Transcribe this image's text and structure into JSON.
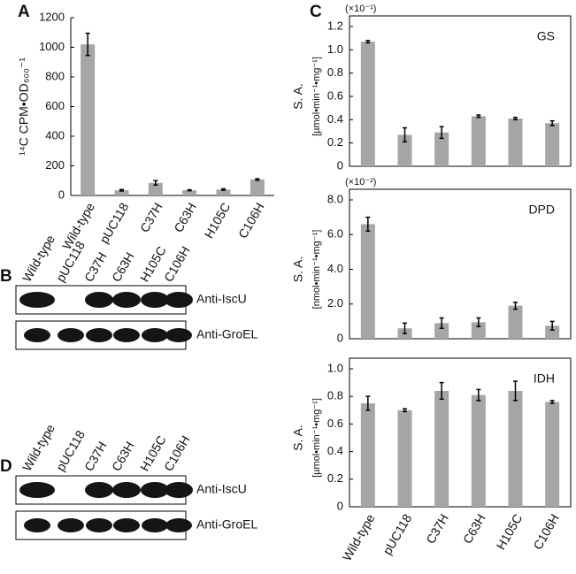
{
  "chart_data": [
    {
      "type": "bar",
      "panel_label": "A",
      "y_label": "¹⁴C CPM•OD₆₀₀⁻¹",
      "categories": [
        "Wild-type",
        "pUC118",
        "C37H",
        "C63H",
        "H105C",
        "C106H"
      ],
      "values": [
        1020,
        35,
        85,
        35,
        40,
        108
      ],
      "errors": [
        75,
        5,
        15,
        3,
        5,
        5
      ],
      "color": "#a6a6a6",
      "ylim": [
        0,
        1200
      ],
      "yticks": [
        0,
        200,
        400,
        600,
        800,
        1000,
        1200
      ],
      "grid": false
    },
    {
      "type": "bar",
      "panel_label": "C",
      "annotation": "GS",
      "scale_note": "(×10⁻¹)",
      "y_label": "S. A.",
      "y_unit": "[µmol•min⁻¹•mg⁻¹]",
      "values": [
        1.07,
        0.27,
        0.29,
        0.43,
        0.41,
        0.37
      ],
      "errors": [
        0.01,
        0.06,
        0.05,
        0.01,
        0.01,
        0.02
      ],
      "color": "#a6a6a6",
      "ylim": [
        0,
        1.2
      ],
      "yticks": [
        0,
        0.2,
        0.4,
        0.6,
        0.8,
        {
          "value": 1,
          "label": "1.0"
        },
        1.2
      ],
      "grid": false
    },
    {
      "type": "bar",
      "annotation": "DPD",
      "scale_note": "(×10⁻²)",
      "y_label": "S. A.",
      "y_unit": "[nmol•min⁻¹•mg⁻¹]",
      "values": [
        6.6,
        0.6,
        0.9,
        0.95,
        1.9,
        0.75
      ],
      "errors": [
        0.4,
        0.3,
        0.3,
        0.25,
        0.2,
        0.25
      ],
      "color": "#a6a6a6",
      "ylim": [
        0,
        8
      ],
      "yticks": [
        0,
        {
          "value": 2,
          "label": "2.0"
        },
        {
          "value": 4,
          "label": "4.0"
        },
        {
          "value": 6,
          "label": "6.0"
        },
        {
          "value": 8,
          "label": "8.0"
        }
      ],
      "grid": false
    },
    {
      "type": "bar",
      "annotation": "IDH",
      "y_label": "S. A.",
      "y_unit": "[µmol•min⁻¹•mg⁻¹]",
      "categories": [
        "Wild-type",
        "pUC118",
        "C37H",
        "C63H",
        "H105C",
        "C106H"
      ],
      "values": [
        0.75,
        0.7,
        0.84,
        0.81,
        0.84,
        0.76
      ],
      "errors": [
        0.05,
        0.01,
        0.06,
        0.04,
        0.07,
        0.01
      ],
      "color": "#a6a6a6",
      "ylim": [
        0,
        1
      ],
      "yticks": [
        0,
        0.2,
        0.4,
        0.6,
        0.8,
        {
          "value": 1,
          "label": "1.0"
        }
      ],
      "grid": false
    }
  ],
  "blots": [
    {
      "panel_label": "B",
      "lanes": [
        "Wild-type",
        "pUC118",
        "C37H",
        "C63H",
        "H105C",
        "C106H"
      ],
      "bands": [
        "Anti-IscU",
        "Anti-GroEL"
      ]
    },
    {
      "panel_label": "D",
      "lanes": [
        "Wild-type",
        "pUC118",
        "C37H",
        "C63H",
        "H105C",
        "C106H"
      ],
      "bands": [
        "Anti-IscU",
        "Anti-GroEL"
      ]
    }
  ]
}
